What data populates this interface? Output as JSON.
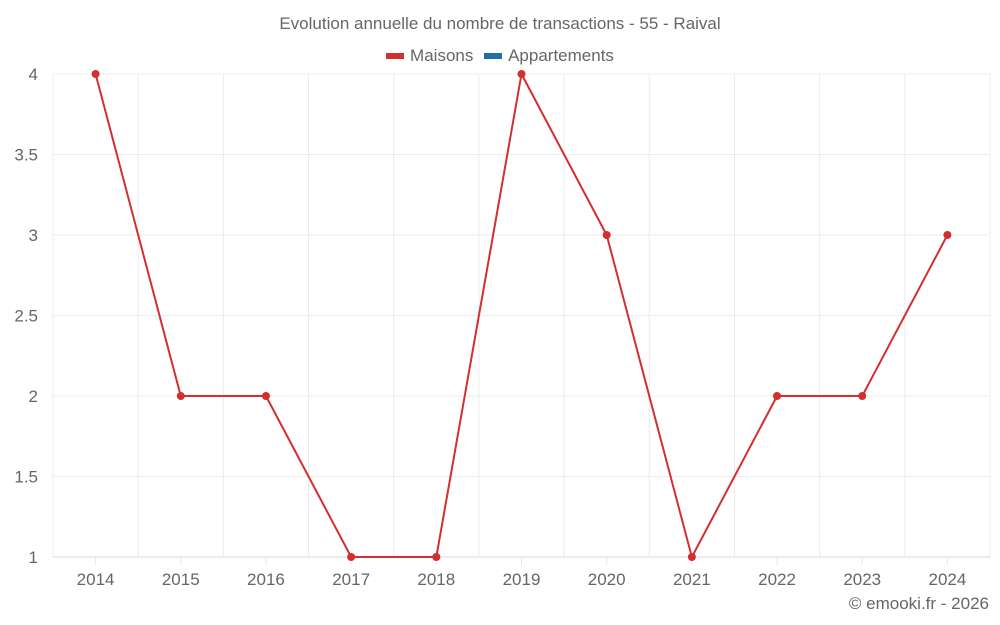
{
  "chart_data": {
    "type": "line",
    "title": "Evolution annuelle du nombre de transactions - 55 - Raival",
    "categories": [
      "2014",
      "2015",
      "2016",
      "2017",
      "2018",
      "2019",
      "2020",
      "2021",
      "2022",
      "2023",
      "2024"
    ],
    "series": [
      {
        "name": "Maisons",
        "color": "#d32f2f",
        "values": [
          4,
          2,
          2,
          1,
          1,
          4,
          3,
          1,
          2,
          2,
          3
        ]
      },
      {
        "name": "Appartements",
        "color": "#1f6ea5",
        "values": []
      }
    ],
    "xlabel": "",
    "ylabel": "",
    "ylim": [
      1,
      4
    ],
    "yticks": [
      "1",
      "1.5",
      "2",
      "2.5",
      "3",
      "3.5",
      "4"
    ],
    "grid": true,
    "legend_position": "top"
  },
  "credit": "© emooki.fr - 2026"
}
